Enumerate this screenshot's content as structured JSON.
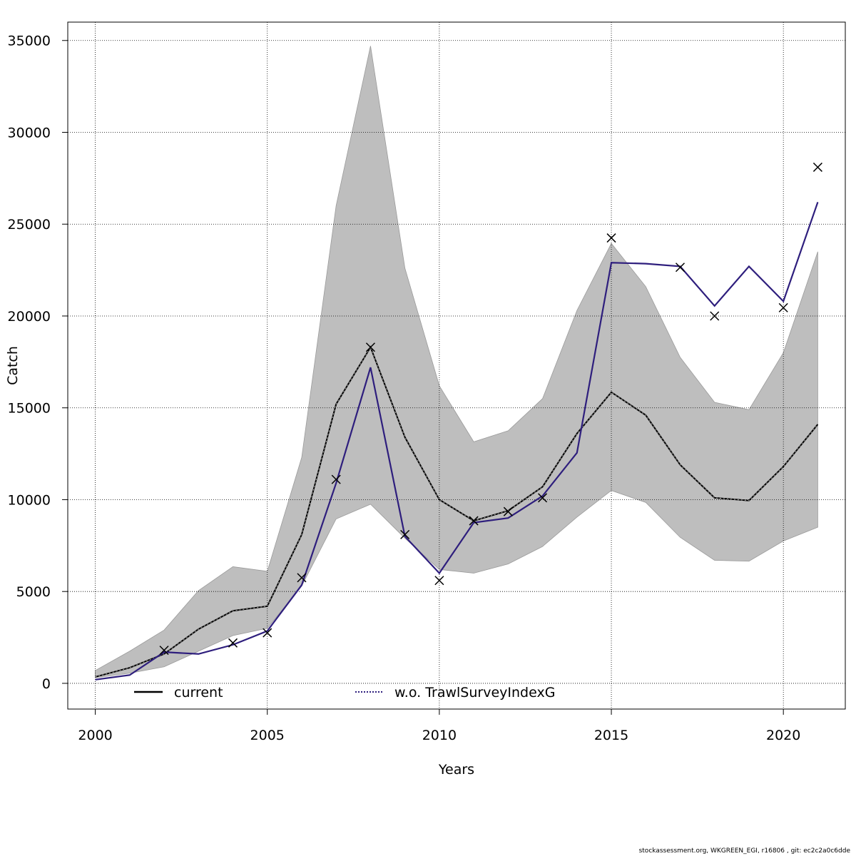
{
  "chart_data": {
    "type": "line",
    "xlabel": "Years",
    "ylabel": "Catch",
    "xlim": [
      1999.2,
      2021.8
    ],
    "ylim": [
      -1400,
      36000
    ],
    "x_ticks": [
      2000,
      2005,
      2010,
      2015,
      2020
    ],
    "y_ticks": [
      0,
      5000,
      10000,
      15000,
      20000,
      25000,
      30000,
      35000
    ],
    "grid": true,
    "legend_position": "bottom",
    "x": [
      2000,
      2001,
      2002,
      2003,
      2004,
      2005,
      2006,
      2007,
      2008,
      2009,
      2010,
      2011,
      2012,
      2013,
      2014,
      2015,
      2016,
      2017,
      2018,
      2019,
      2020,
      2021
    ],
    "series": [
      {
        "name": "current",
        "color": "#000000",
        "style": "dotted-black",
        "values": [
          350,
          850,
          1600,
          2950,
          3950,
          4200,
          8100,
          15200,
          18300,
          13400,
          10000,
          8850,
          9400,
          10700,
          13600,
          15850,
          14600,
          11900,
          10100,
          9950,
          11800,
          14100
        ],
        "lower": [
          300,
          550,
          900,
          1750,
          2600,
          3000,
          5300,
          8950,
          9750,
          7900,
          6200,
          6000,
          6500,
          7450,
          9050,
          10500,
          9850,
          7950,
          6700,
          6650,
          7750,
          8500
        ],
        "upper": [
          700,
          1750,
          2900,
          5050,
          6350,
          6100,
          12300,
          26000,
          34700,
          22600,
          16200,
          13150,
          13750,
          15500,
          20300,
          23950,
          21600,
          17750,
          15300,
          14900,
          18000,
          23500
        ]
      },
      {
        "name": "w.o. TrawlSurveyIndexG",
        "color": "#2e1e7d",
        "values": [
          200,
          450,
          1700,
          1600,
          2100,
          2850,
          5350,
          10900,
          17200,
          8000,
          6000,
          8750,
          9000,
          10200,
          12550,
          22900,
          22850,
          22700,
          20550,
          22700,
          20800,
          26200
        ]
      }
    ],
    "observed": {
      "x": [
        2002,
        2004,
        2005,
        2006,
        2007,
        2008,
        2009,
        2010,
        2011,
        2012,
        2013,
        2015,
        2017,
        2018,
        2020,
        2021
      ],
      "values": [
        1800,
        2200,
        2750,
        5750,
        11100,
        18300,
        8100,
        5600,
        8850,
        9350,
        10100,
        24250,
        22650,
        20000,
        20450,
        28100
      ]
    },
    "band_color": "#bebebe"
  },
  "footer": {
    "text": "stockassessment.org, WKGREEN_EGI, r16806 , git: ec2c2a0c6dde"
  }
}
